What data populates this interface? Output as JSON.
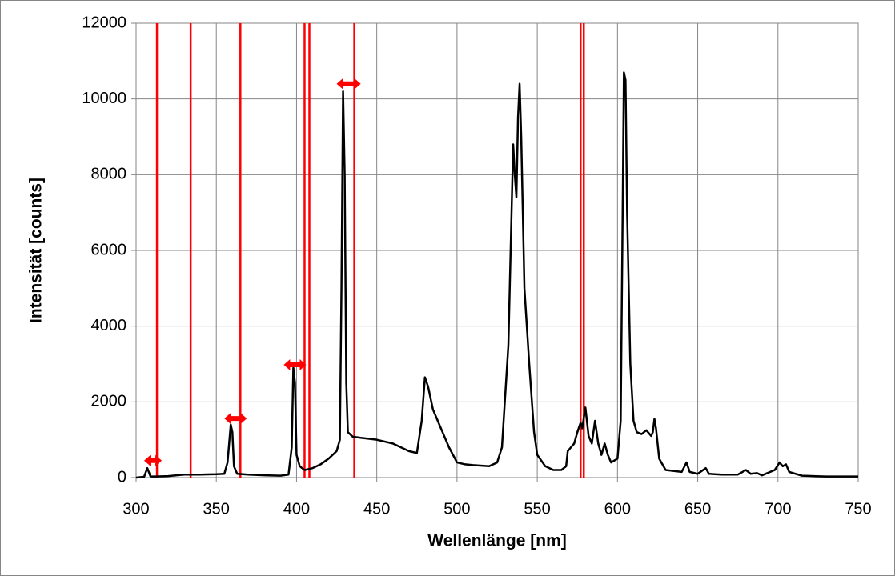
{
  "chart_data": {
    "type": "line",
    "xlabel": "Wellenlänge [nm]",
    "ylabel": "Intensität [counts]",
    "xlim": [
      300,
      750
    ],
    "ylim": [
      0,
      12000
    ],
    "xticks": [
      300,
      350,
      400,
      450,
      500,
      550,
      600,
      650,
      700,
      750
    ],
    "yticks": [
      0,
      2000,
      4000,
      6000,
      8000,
      10000,
      12000
    ],
    "grid": true,
    "x": [
      300,
      305,
      307,
      309,
      312,
      320,
      330,
      340,
      350,
      355,
      357,
      359,
      360,
      361,
      363,
      370,
      380,
      390,
      395,
      397,
      398,
      399,
      400,
      402,
      405,
      410,
      415,
      420,
      425,
      427,
      428,
      429,
      430,
      431,
      432,
      435,
      440,
      450,
      460,
      470,
      475,
      478,
      480,
      482,
      485,
      490,
      495,
      500,
      505,
      510,
      520,
      525,
      528,
      532,
      535,
      536,
      537,
      538,
      539,
      540,
      542,
      545,
      548,
      550,
      555,
      560,
      565,
      568,
      569,
      571,
      573,
      575,
      577,
      578,
      580,
      582,
      584,
      586,
      588,
      590,
      592,
      594,
      596,
      600,
      602,
      603,
      604,
      605,
      606,
      608,
      610,
      612,
      615,
      618,
      621,
      622,
      623,
      624,
      626,
      630,
      640,
      643,
      645,
      650,
      655,
      657,
      665,
      675,
      680,
      683,
      687,
      690,
      698,
      701,
      703,
      705,
      707,
      715,
      730,
      750
    ],
    "series": [
      {
        "color": "#000000",
        "values": [
          0,
          20,
          250,
          30,
          30,
          40,
          80,
          80,
          90,
          100,
          400,
          1400,
          1200,
          300,
          100,
          80,
          60,
          50,
          80,
          800,
          2900,
          2500,
          600,
          300,
          200,
          250,
          350,
          500,
          700,
          1000,
          5000,
          10200,
          8000,
          2500,
          1200,
          1080,
          1050,
          1000,
          900,
          700,
          650,
          1500,
          2650,
          2400,
          1800,
          1300,
          800,
          400,
          350,
          330,
          300,
          400,
          800,
          3500,
          8800,
          8000,
          7400,
          9500,
          10400,
          9000,
          5000,
          3000,
          1200,
          600,
          300,
          200,
          200,
          300,
          700,
          800,
          900,
          1200,
          1450,
          1300,
          1850,
          1100,
          900,
          1500,
          900,
          600,
          900,
          600,
          400,
          500,
          1500,
          6000,
          10700,
          10500,
          7000,
          3000,
          1500,
          1200,
          1150,
          1250,
          1100,
          1200,
          1550,
          1300,
          500,
          200,
          150,
          400,
          150,
          100,
          250,
          100,
          80,
          80,
          200,
          100,
          120,
          60,
          200,
          400,
          300,
          350,
          150,
          50,
          30,
          30
        ]
      }
    ],
    "red_lines": {
      "color": "#ff0000",
      "values": [
        313,
        334,
        365,
        405,
        408,
        436,
        577,
        579
      ]
    },
    "arrows": {
      "color": "#ff0000",
      "items": [
        {
          "x1": 305,
          "x2": 316,
          "y": 450
        },
        {
          "x1": 355,
          "x2": 369,
          "y": 1560
        },
        {
          "x1": 392,
          "x2": 406,
          "y": 2980
        },
        {
          "x1": 425,
          "x2": 440,
          "y": 10400
        }
      ]
    }
  }
}
